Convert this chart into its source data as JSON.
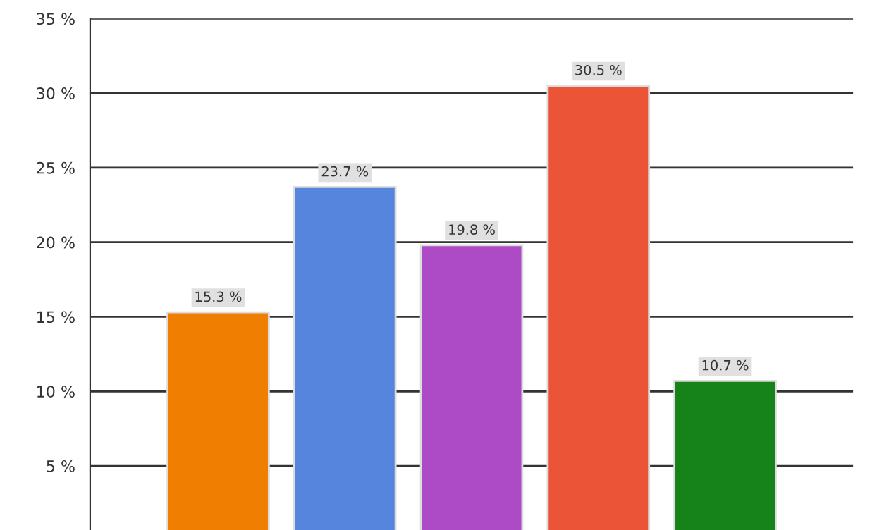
{
  "chart_data": {
    "type": "bar",
    "categories": [
      null,
      null,
      null,
      null,
      null
    ],
    "values": [
      15.3,
      23.7,
      19.8,
      30.5,
      10.7
    ],
    "value_labels": [
      "15.3 %",
      "23.7 %",
      "19.8 %",
      "30.5 %",
      "10.7 %"
    ],
    "colors": [
      "#f07e00",
      "#5585dc",
      "#ad4ac6",
      "#ec5438",
      "#16821a"
    ],
    "ylim": [
      0.7,
      35
    ],
    "yticks": [
      {
        "value": 5,
        "label": "5 %"
      },
      {
        "value": 10,
        "label": "10 %"
      },
      {
        "value": 15,
        "label": "15 %"
      },
      {
        "value": 20,
        "label": "20 %"
      },
      {
        "value": 25,
        "label": "25 %"
      },
      {
        "value": 30,
        "label": "30 %"
      },
      {
        "value": 35,
        "label": "35 %"
      }
    ],
    "grid": "y",
    "tick_labels": "y"
  }
}
